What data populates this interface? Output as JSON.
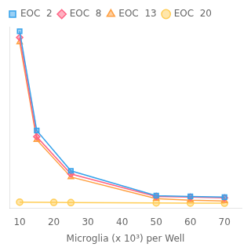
{
  "chart_data": {
    "type": "line",
    "xlabel": "Microglia (x 10³) per Well",
    "xlim": [
      7,
      75
    ],
    "xticks": [
      10,
      20,
      30,
      40,
      50,
      60,
      70
    ],
    "ylim": [
      -0.02,
      1.15
    ],
    "tick_labels": "x",
    "grid": false,
    "legend": "upper left",
    "series": [
      {
        "name": "EOC  2",
        "marker": "square",
        "x": [
          10,
          15,
          25,
          50,
          60,
          70
        ],
        "values": [
          1.12,
          0.48,
          0.22,
          0.06,
          0.055,
          0.05
        ]
      },
      {
        "name": "EOC  8",
        "marker": "diamond",
        "x": [
          10,
          15,
          25,
          50,
          60,
          70
        ],
        "values": [
          1.08,
          0.44,
          0.2,
          0.055,
          0.05,
          0.045
        ]
      },
      {
        "name": "EOC  13",
        "marker": "triangle",
        "x": [
          10,
          15,
          25,
          50,
          60,
          70
        ],
        "values": [
          1.05,
          0.42,
          0.18,
          0.04,
          0.03,
          0.025
        ]
      },
      {
        "name": "EOC  20",
        "marker": "circle",
        "x": [
          10,
          20,
          25,
          50,
          60,
          70
        ],
        "values": [
          0.018,
          0.016,
          0.015,
          0.013,
          0.012,
          0.011
        ]
      }
    ]
  }
}
